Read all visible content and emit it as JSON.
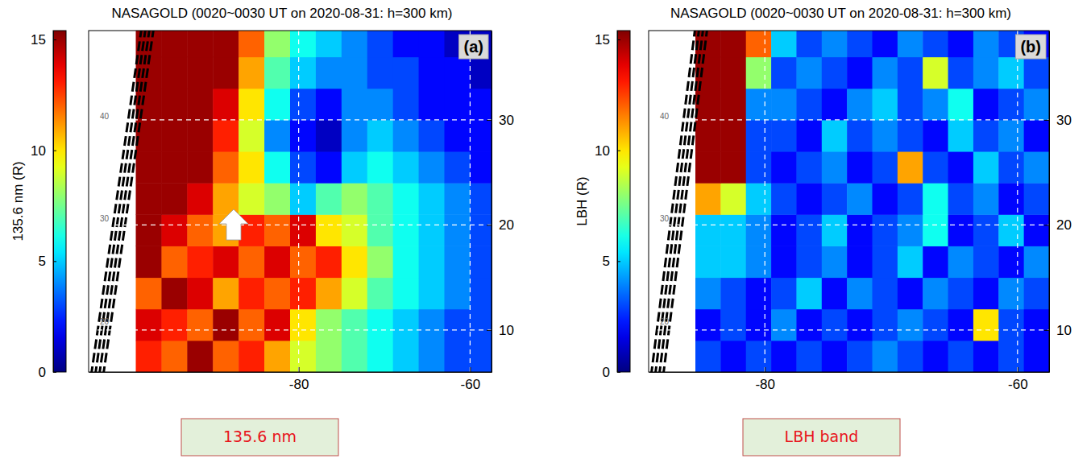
{
  "chart_data": [
    {
      "type": "heatmap",
      "title": "NASAGOLD (0020~0030 UT on 2020-08-31: h=300 km)",
      "panel_label": "(a)",
      "caption": "135.6 nm",
      "colorbar_label": "135.6 nm (R)",
      "colorbar_lim": [
        0,
        15.4
      ],
      "colorbar_ticks": [
        0,
        5,
        10,
        15
      ],
      "xlim": [
        -104.5,
        -57.5
      ],
      "xticks": [
        -80,
        -60
      ],
      "ylim": [
        6,
        38.5
      ],
      "yticks": [
        10,
        20,
        30
      ],
      "grid": true,
      "grid_labels": [
        40,
        30,
        20
      ],
      "x": [
        -97.5,
        -94.5,
        -91.5,
        -88.5,
        -85.5,
        -82.5,
        -79.5,
        -76.5,
        -73.5,
        -70.5,
        -67.5,
        -64.5,
        -61.5,
        -58.5
      ],
      "y": [
        7.5,
        10.5,
        13.5,
        16.5,
        19.5,
        22.5,
        25.5,
        28.5,
        31.5,
        34.5,
        37.5
      ],
      "z": [
        [
          13,
          12,
          15,
          12,
          13,
          11,
          9,
          8,
          7,
          6,
          5,
          4,
          3,
          3
        ],
        [
          14,
          13,
          12,
          15,
          12,
          14,
          10,
          8,
          7,
          6,
          5,
          4,
          3,
          3
        ],
        [
          12,
          15,
          14,
          11,
          13,
          12,
          13,
          11,
          9,
          7,
          6,
          5,
          4,
          3
        ],
        [
          15,
          12,
          13,
          14,
          12,
          14,
          12,
          13,
          10,
          8,
          6,
          5,
          4,
          3
        ],
        [
          15,
          14,
          12,
          11,
          13,
          12,
          14,
          10,
          9,
          7,
          6,
          5,
          4,
          3
        ],
        [
          15,
          15,
          14,
          11,
          9,
          8,
          5,
          7,
          8,
          7,
          6,
          5,
          4,
          3
        ],
        [
          15,
          15,
          15,
          12,
          10,
          6,
          3,
          2,
          5,
          6,
          5,
          4,
          3,
          2
        ],
        [
          15,
          15,
          15,
          13,
          9,
          4,
          2,
          1,
          4,
          5,
          4,
          3,
          2,
          2
        ],
        [
          15,
          15,
          15,
          14,
          10,
          6,
          3,
          2,
          4,
          4,
          3,
          2,
          2,
          2
        ],
        [
          15,
          15,
          15,
          15,
          11,
          7,
          5,
          4,
          4,
          3,
          3,
          2,
          2,
          1
        ],
        [
          15,
          15,
          15,
          15,
          12,
          8,
          6,
          5,
          4,
          3,
          2,
          2,
          1,
          1
        ]
      ]
    },
    {
      "type": "heatmap",
      "title": "NASAGOLD (0020~0030 UT on 2020-08-31: h=300 km)",
      "panel_label": "(b)",
      "caption": "LBH band",
      "colorbar_label": "LBH (R)",
      "colorbar_lim": [
        0,
        15.4
      ],
      "colorbar_ticks": [
        0,
        5,
        10,
        15
      ],
      "xlim": [
        -89.2,
        -57.5
      ],
      "xticks": [
        -80,
        -60
      ],
      "ylim": [
        6,
        38.5
      ],
      "yticks": [
        10,
        20,
        30
      ],
      "grid": true,
      "grid_labels": [
        40,
        30,
        20
      ],
      "x": [
        -84.5,
        -82.5,
        -80.5,
        -78.5,
        -76.5,
        -74.5,
        -72.5,
        -70.5,
        -68.5,
        -66.5,
        -64.5,
        -62.5,
        -60.5,
        -58.5
      ],
      "y": [
        7.5,
        10.5,
        13.5,
        16.5,
        19.5,
        22.5,
        25.5,
        28.5,
        31.5,
        34.5,
        37.5
      ],
      "z": [
        [
          3,
          2,
          3,
          2,
          3,
          2,
          3,
          4,
          3,
          2,
          3,
          2,
          3,
          2
        ],
        [
          2,
          3,
          2,
          4,
          2,
          3,
          2,
          3,
          4,
          3,
          2,
          10,
          3,
          2
        ],
        [
          4,
          3,
          2,
          3,
          5,
          2,
          4,
          3,
          2,
          4,
          3,
          2,
          4,
          3
        ],
        [
          5,
          5,
          4,
          2,
          3,
          4,
          2,
          3,
          5,
          2,
          4,
          3,
          2,
          4
        ],
        [
          5,
          5,
          4,
          2,
          3,
          5,
          2,
          3,
          4,
          6,
          2,
          3,
          5,
          2
        ],
        [
          11,
          9,
          5,
          3,
          2,
          3,
          4,
          2,
          3,
          6,
          3,
          4,
          2,
          3
        ],
        [
          15,
          15,
          3,
          2,
          3,
          4,
          2,
          3,
          11,
          3,
          2,
          5,
          3,
          4
        ],
        [
          15,
          15,
          3,
          3,
          2,
          5,
          3,
          4,
          3,
          2,
          5,
          3,
          4,
          2
        ],
        [
          15,
          15,
          4,
          4,
          3,
          2,
          4,
          5,
          3,
          4,
          6,
          2,
          3,
          4
        ],
        [
          15,
          15,
          8,
          3,
          4,
          3,
          2,
          4,
          3,
          9,
          3,
          4,
          5,
          3
        ],
        [
          15,
          15,
          12,
          5,
          3,
          4,
          3,
          2,
          4,
          3,
          2,
          4,
          3,
          2
        ]
      ]
    }
  ]
}
